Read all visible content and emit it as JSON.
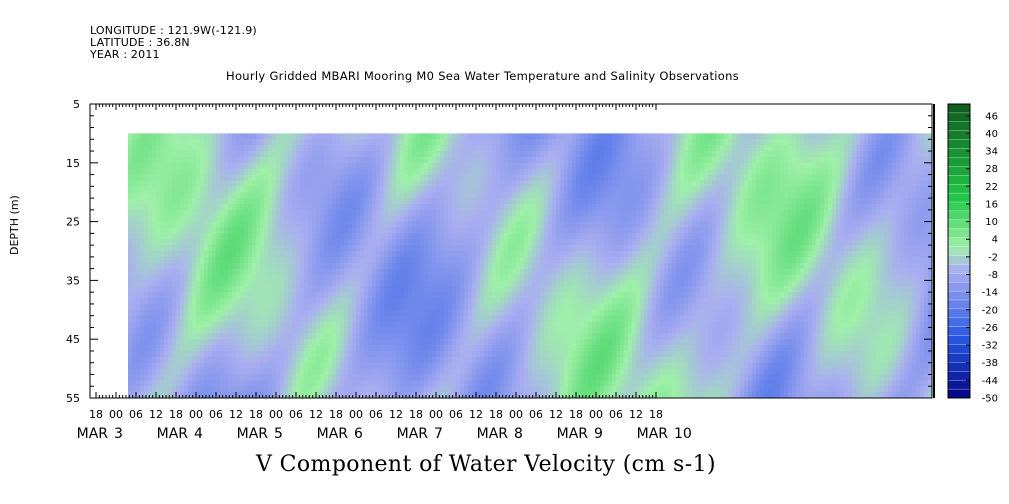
{
  "header": {
    "longitude": "LONGITUDE : 121.9W(-121.9)",
    "latitude": "LATITUDE : 36.8N",
    "year": "YEAR : 2011"
  },
  "chart_data": {
    "type": "heatmap",
    "title": "Hourly Gridded MBARI Mooring M0 Sea Water Temperature and Salinity Observations",
    "variable_label": "V Component of Water Velocity (cm s-1)",
    "ylabel": "DEPTH (m)",
    "y_axis": {
      "range": [
        5,
        55
      ],
      "inverted": true,
      "tick_values": [
        5,
        15,
        25,
        35,
        45,
        55
      ]
    },
    "data_depth_range": [
      10,
      55
    ],
    "x_axis": {
      "hour_labels": [
        "18",
        "00",
        "06",
        "12",
        "18",
        "00",
        "06",
        "12",
        "18",
        "00",
        "06",
        "12",
        "18",
        "00",
        "06",
        "12",
        "18",
        "00",
        "06",
        "12",
        "18",
        "00",
        "06",
        "12",
        "18",
        "00",
        "06",
        "12",
        "18"
      ],
      "day_labels": [
        {
          "month": "MAR",
          "day": "3"
        },
        {
          "month": "MAR",
          "day": "4"
        },
        {
          "month": "MAR",
          "day": "5"
        },
        {
          "month": "MAR",
          "day": "6"
        },
        {
          "month": "MAR",
          "day": "7"
        },
        {
          "month": "MAR",
          "day": "8"
        },
        {
          "month": "MAR",
          "day": "9"
        },
        {
          "month": "MAR",
          "day": "10"
        }
      ]
    },
    "colorbar": {
      "labels": [
        "46",
        "40",
        "34",
        "28",
        "22",
        "16",
        "10",
        "4",
        "-2",
        "-8",
        "-14",
        "-20",
        "-26",
        "-32",
        "-38",
        "-44",
        "-50"
      ],
      "range": [
        -50,
        50
      ],
      "step": 3,
      "colors": {
        "strong_negative": "#000080",
        "negative": "#2a5ae6",
        "weak_negative": "#a9aef0",
        "weak_positive": "#9ef0a8",
        "positive": "#22c84a",
        "strong_positive": "#0d5a1e"
      }
    }
  }
}
